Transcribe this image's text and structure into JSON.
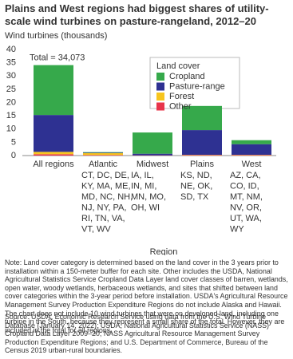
{
  "chart_data": {
    "type": "stacked-bar",
    "title": "Plains and West regions had biggest shares of utility-scale wind turbines on pasture-rangeland, 2012–20",
    "y_label": "Wind turbines (thousands)",
    "x_label": "Region",
    "legend_title": "Land cover",
    "annotation": "Total = 34,073",
    "categories": [
      "All regions",
      "Atlantic",
      "Midwest",
      "Plains",
      "West"
    ],
    "category_details": [
      [],
      [
        "CT, DC, DE,",
        "KY, MA, ME,",
        "MD, NC, NH,",
        "NJ, NY, PA,",
        "RI, TN, VA,",
        "VT, WV"
      ],
      [
        "IA, IL,",
        "IN, MI,",
        "MN, MO,",
        "OH, WI"
      ],
      [
        "KS, ND,",
        "NE, OK,",
        "SD, TX"
      ],
      [
        "AZ, CA,",
        "CO, ID,",
        "MT, NM,",
        "NV, OR,",
        "UT, WA,",
        "WY"
      ]
    ],
    "series": [
      {
        "name": "Cropland",
        "color": "#36a94b",
        "values": [
          18.8,
          0.2,
          8.0,
          9.1,
          1.5
        ]
      },
      {
        "name": "Pasture-range",
        "color": "#2e3192",
        "values": [
          13.9,
          0.2,
          0.6,
          9.3,
          4.0
        ]
      },
      {
        "name": "Forest",
        "color": "#f7c51e",
        "values": [
          0.9,
          0.7,
          0.0,
          0.1,
          0.1
        ]
      },
      {
        "name": "Other",
        "color": "#e8344a",
        "values": [
          0.5,
          0.2,
          0.1,
          0.2,
          0.2
        ]
      }
    ],
    "ylim": [
      0,
      40
    ],
    "yticks": [
      0,
      5,
      10,
      15,
      20,
      25,
      30,
      35,
      40
    ],
    "grid": false
  },
  "note": "Note: Land cover category is determined based on the land cover in the 3 years prior to installation within a 150-meter buffer for each site. Other includes the USDA, National Agricultural Statistics Service Cropland Data Layer land cover classes of barren, wetlands, open water, woody wetlands, herbaceous wetlands, and sites that shifted between land cover categories within the 3-year period before installation. USDA's Agricultural Resource Management Survey Production Expenditure Regions do not include Alaska and Hawaii. The chart does not include 10 wind turbines that were on developed land, including one turbine in the South, because they represent a small share of the total. However, they are included in the total for all regions.",
  "source": "Source: USDA, Economic Research Service using data from the U.S. Wind Turbine Database (January 14, 2022); USDA, National Agricultural Statistics Service (NASS) Cropland Data Layer 2009–20; NASS Agricultural Resource Management Survey Production Expenditure Regions; and U.S. Department of Commerce, Bureau of the Census 2019 urban-rural boundaries."
}
